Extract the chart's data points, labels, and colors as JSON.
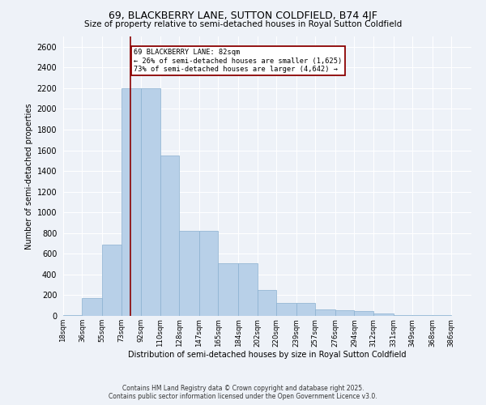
{
  "title": "69, BLACKBERRY LANE, SUTTON COLDFIELD, B74 4JF",
  "subtitle": "Size of property relative to semi-detached houses in Royal Sutton Coldfield",
  "xlabel": "Distribution of semi-detached houses by size in Royal Sutton Coldfield",
  "ylabel": "Number of semi-detached properties",
  "bar_color": "#b8d0e8",
  "bar_edge_color": "#8ab0d0",
  "background_color": "#eef2f8",
  "grid_color": "#ffffff",
  "property_line_x": 82,
  "property_line_color": "#8b0000",
  "annotation_title": "69 BLACKBERRY LANE: 82sqm",
  "annotation_line1": "← 26% of semi-detached houses are smaller (1,625)",
  "annotation_line2": "73% of semi-detached houses are larger (4,642) →",
  "annotation_box_color": "#8b0000",
  "footer_line1": "Contains HM Land Registry data © Crown copyright and database right 2025.",
  "footer_line2": "Contains public sector information licensed under the Open Government Licence v3.0.",
  "bin_labels": [
    "18sqm",
    "36sqm",
    "55sqm",
    "73sqm",
    "92sqm",
    "110sqm",
    "128sqm",
    "147sqm",
    "165sqm",
    "184sqm",
    "202sqm",
    "220sqm",
    "239sqm",
    "257sqm",
    "276sqm",
    "294sqm",
    "312sqm",
    "331sqm",
    "349sqm",
    "368sqm",
    "386sqm"
  ],
  "bin_edges": [
    18,
    36,
    55,
    73,
    92,
    110,
    128,
    147,
    165,
    184,
    202,
    220,
    239,
    257,
    276,
    294,
    312,
    331,
    349,
    368,
    386,
    405
  ],
  "bar_heights": [
    8,
    170,
    690,
    2200,
    2200,
    1550,
    820,
    820,
    510,
    510,
    250,
    125,
    125,
    65,
    55,
    45,
    22,
    8,
    5,
    5,
    3
  ],
  "ylim": [
    0,
    2700
  ],
  "yticks": [
    0,
    200,
    400,
    600,
    800,
    1000,
    1200,
    1400,
    1600,
    1800,
    2000,
    2200,
    2400,
    2600
  ]
}
